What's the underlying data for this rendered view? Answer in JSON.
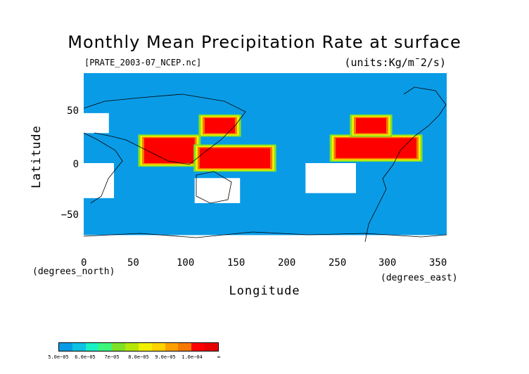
{
  "title": "Monthly Mean Precipitation Rate at surface",
  "source_file": "[PRATE_2003-07_NCEP.nc]",
  "units": "(units:Kg/m¯2/s)",
  "xlabel": "Longitude",
  "ylabel": "Latitude",
  "x_unit": "(degrees_east)",
  "y_unit": "(degrees_north)",
  "x_ticks": [
    "0",
    "50",
    "100",
    "150",
    "200",
    "250",
    "300",
    "350"
  ],
  "y_ticks": [
    "50",
    "0",
    "−50"
  ],
  "colors": {
    "ocean_background": "#0a9be6",
    "low_mask": "#ffffff",
    "coastline": "#000000"
  },
  "colorbar": {
    "colors": [
      "#0a9be6",
      "#0fc1e3",
      "#19f0c4",
      "#3cf57a",
      "#7ee028",
      "#b4e60a",
      "#f0f000",
      "#ffd200",
      "#ffa000",
      "#f57800",
      "#ff0000",
      "#e60000"
    ],
    "labels": [
      "5.0e−05",
      "6.0e−05",
      "7e−05",
      "8.0e−05",
      "9.0e−05",
      "1.0e−04",
      "∞"
    ]
  },
  "chart_data": {
    "type": "heatmap",
    "title": "Monthly Mean Precipitation Rate at surface",
    "xlabel": "Longitude",
    "ylabel": "Latitude",
    "xlim": [
      0,
      360
    ],
    "ylim": [
      -90,
      90
    ],
    "x_ticks": [
      0,
      50,
      100,
      150,
      200,
      250,
      300,
      350
    ],
    "y_ticks": [
      50,
      0,
      -50
    ],
    "colorbar_levels": [
      5e-05,
      6e-05,
      7e-05,
      8e-05,
      9e-05,
      0.0001
    ],
    "heavy_regions": [
      {
        "lon": [
          60,
          110
        ],
        "lat": [
          0,
          25
        ]
      },
      {
        "lon": [
          115,
          185
        ],
        "lat": [
          -5,
          15
        ]
      },
      {
        "lon": [
          250,
          330
        ],
        "lat": [
          5,
          25
        ]
      },
      {
        "lon": [
          270,
          300
        ],
        "lat": [
          30,
          45
        ]
      },
      {
        "lon": [
          120,
          150
        ],
        "lat": [
          30,
          45
        ]
      }
    ],
    "missing_regions": [
      {
        "lon": [
          0,
          30
        ],
        "lat": [
          -35,
          0
        ]
      },
      {
        "lon": [
          0,
          25
        ],
        "lat": [
          30,
          50
        ]
      },
      {
        "lon": [
          110,
          155
        ],
        "lat": [
          -40,
          -15
        ]
      },
      {
        "lon": [
          220,
          270
        ],
        "lat": [
          -30,
          0
        ]
      },
      {
        "lon": [
          0,
          360
        ],
        "lat": [
          -90,
          -72
        ]
      }
    ]
  }
}
